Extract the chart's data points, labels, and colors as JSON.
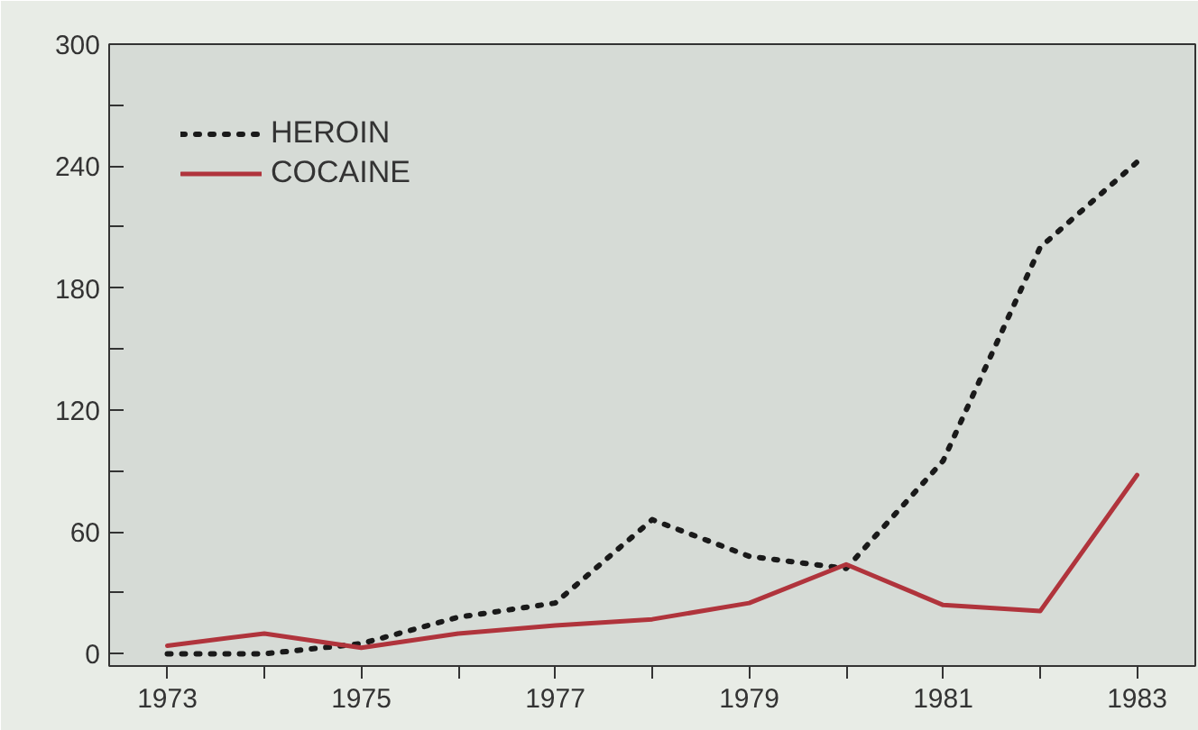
{
  "chart_data": {
    "type": "line",
    "x": [
      1973,
      1974,
      1975,
      1976,
      1977,
      1978,
      1979,
      1980,
      1981,
      1982,
      1983
    ],
    "series": [
      {
        "name": "HEROIN",
        "color": "#1a1a1a",
        "line_style": "dotted",
        "values": [
          0,
          0,
          5,
          18,
          25,
          66,
          48,
          42,
          95,
          200,
          242
        ]
      },
      {
        "name": "COCAINE",
        "color": "#b0343c",
        "line_style": "solid",
        "values": [
          4,
          10,
          3,
          10,
          14,
          17,
          25,
          44,
          24,
          21,
          88
        ]
      }
    ],
    "xlim": [
      1972.4,
      1983.6
    ],
    "ylim": [
      -6,
      300
    ],
    "xticks": [
      1973,
      {
        "value": 1974,
        "label": null
      },
      1975,
      {
        "value": 1976,
        "label": null
      },
      1977,
      {
        "value": 1978,
        "label": null
      },
      1979,
      {
        "value": 1980,
        "label": null
      },
      1981,
      {
        "value": 1982,
        "label": null
      },
      1983
    ],
    "yticks": [
      0,
      {
        "value": 30,
        "label": null
      },
      60,
      {
        "value": 90,
        "label": null
      },
      120,
      {
        "value": 150,
        "label": null
      },
      180,
      {
        "value": 210,
        "label": null
      },
      240,
      {
        "value": 270,
        "label": null
      },
      300
    ],
    "grid": false,
    "legend": "top left",
    "marker": "none"
  }
}
